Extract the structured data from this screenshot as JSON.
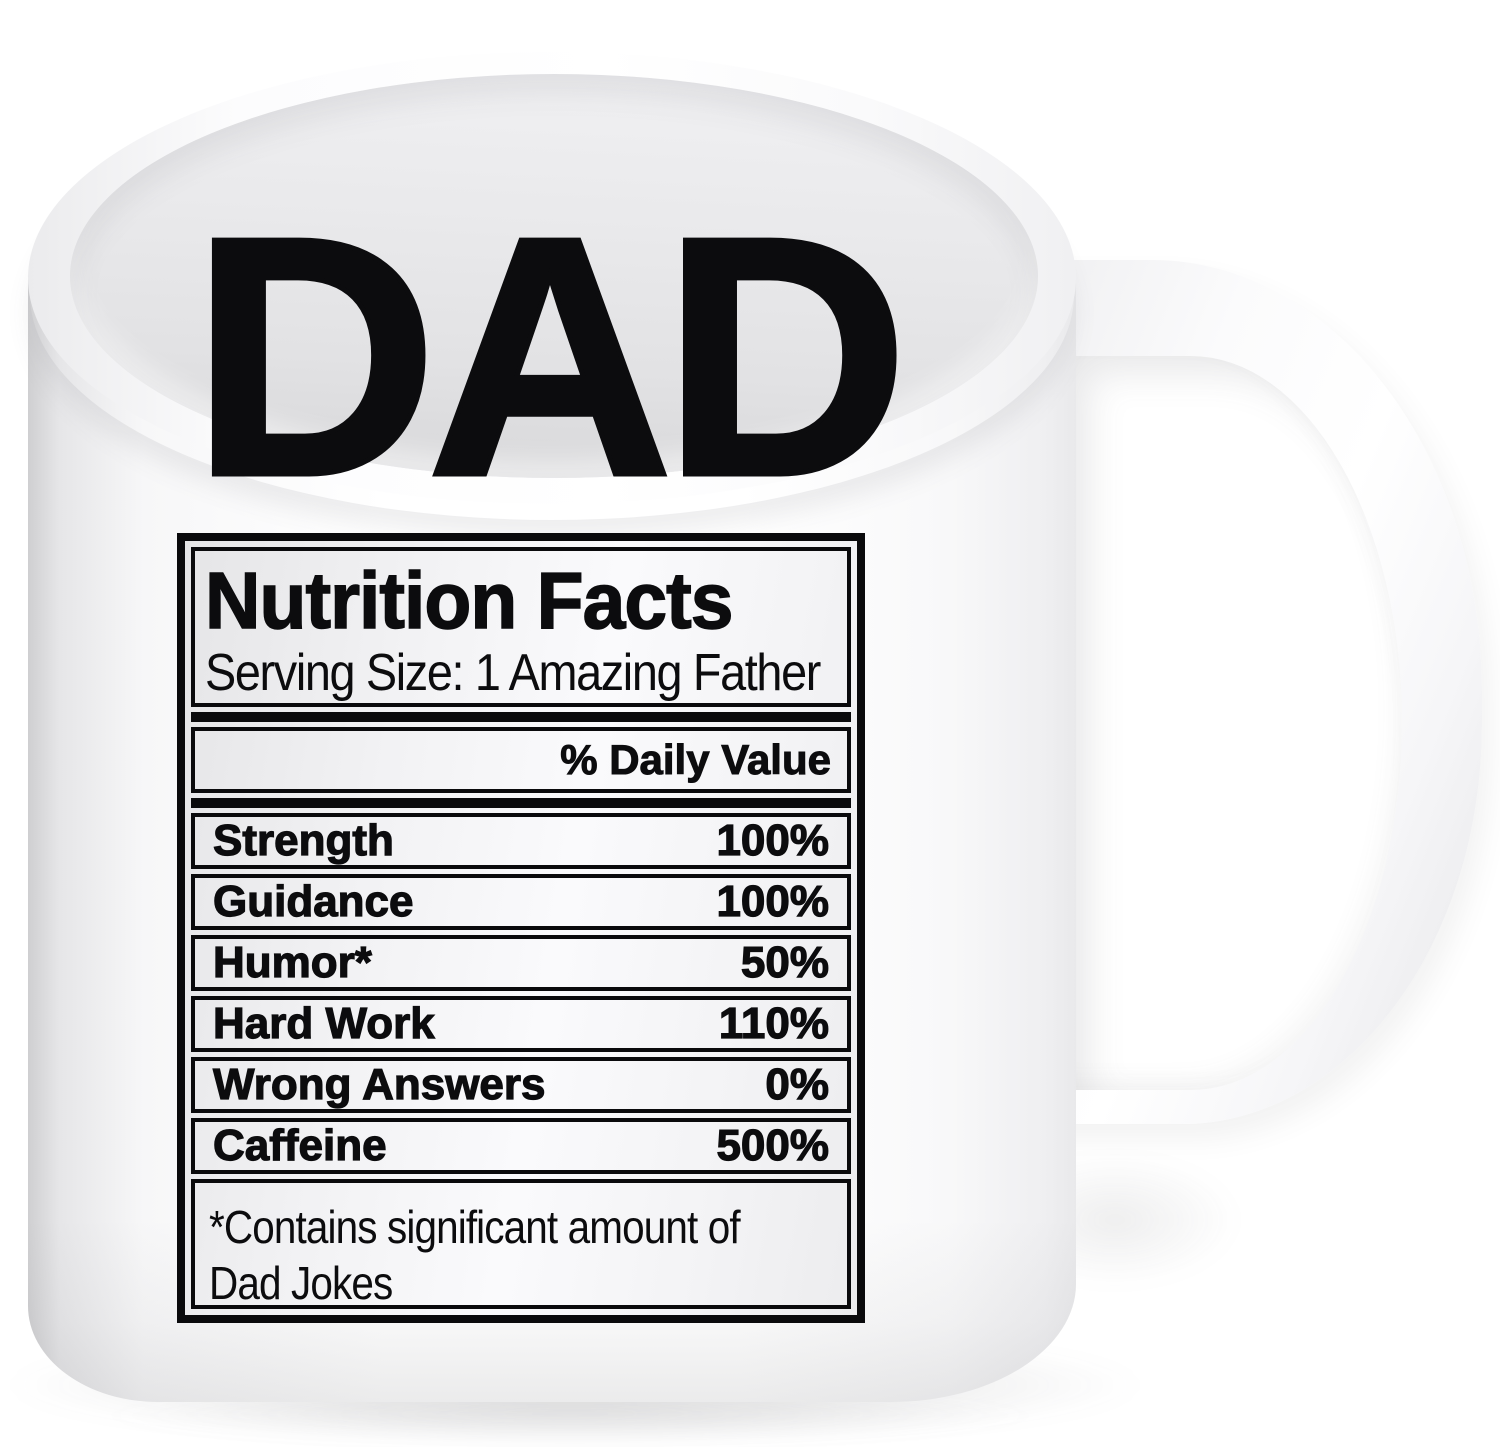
{
  "mug_print": {
    "name": "DAD",
    "label": {
      "title": "Nutrition Facts",
      "serving": "Serving Size: 1 Amazing Father",
      "daily_value_header": "% Daily Value",
      "rows": [
        {
          "name": "Strength",
          "value": "100%"
        },
        {
          "name": "Guidance",
          "value": "100%"
        },
        {
          "name": "Humor*",
          "value": "50%"
        },
        {
          "name": "Hard Work",
          "value": "110%"
        },
        {
          "name": "Wrong Answers",
          "value": "0%"
        },
        {
          "name": "Caffeine",
          "value": "500%"
        }
      ],
      "footnote_line1": "*Contains significant amount of",
      "footnote_line2": "Dad Jokes"
    }
  },
  "colors": {
    "ink": "#0c0c0e",
    "mug_white": "#ffffff",
    "interior_gray": "#e4e4e6",
    "label_gradient_edge": "#e5e5e7"
  }
}
